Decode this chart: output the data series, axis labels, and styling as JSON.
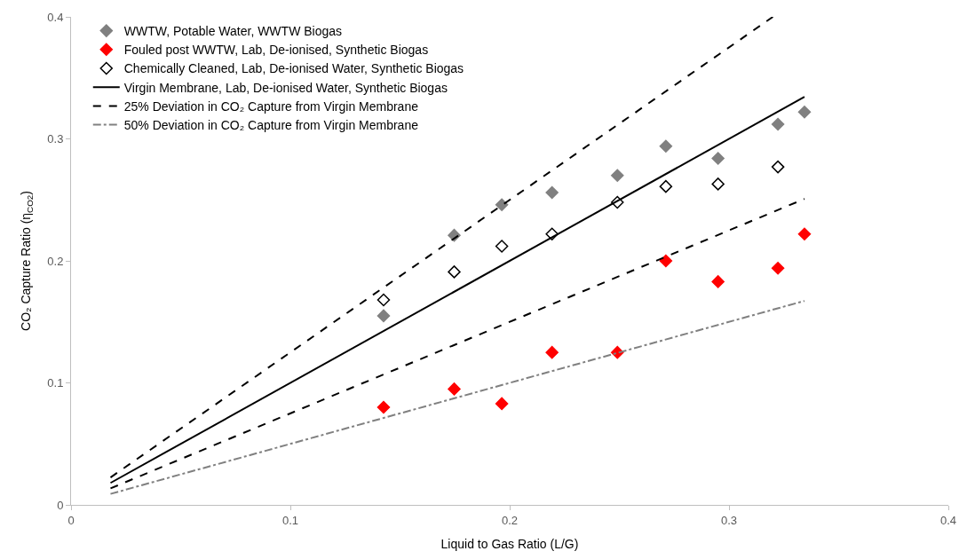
{
  "chart_data": {
    "type": "scatter",
    "xlabel": "Liquid to Gas Ratio (L/G)",
    "ylabel": "CO₂ Capture Ratio (η$_{CO2}$)",
    "x": [
      0.1425,
      0.1747,
      0.1964,
      0.2193,
      0.2491,
      0.2712,
      0.295,
      0.3223,
      0.3344
    ],
    "series": [
      {
        "name": "WWTW, Potable Water, WWTW Biogas",
        "marker": "diamond",
        "color": "#808080",
        "values": [
          0.155,
          0.221,
          0.246,
          0.256,
          0.27,
          0.294,
          0.284,
          0.312,
          0.322
        ]
      },
      {
        "name": "Fouled post WWTW, Lab, De-ionised, Synthetic Biogas",
        "marker": "diamond",
        "color": "#ff0000",
        "values": [
          0.08,
          0.095,
          0.083,
          0.125,
          0.125,
          0.2,
          0.183,
          0.194,
          0.222
        ]
      },
      {
        "name": "Chemically Cleaned, Lab, De-ionised Water, Synthetic Biogas",
        "marker": "diamond-open",
        "color": "#000000",
        "values": [
          0.168,
          0.191,
          0.212,
          0.222,
          0.248,
          0.261,
          0.263,
          0.277,
          null
        ]
      },
      {
        "name": "Virgin Membrane, Lab, De-ionised Water, Synthetic Biogas",
        "type": "line",
        "marker": "none",
        "line_style": "solid",
        "color": "#000000",
        "x": [
          0.018,
          0.3344
        ],
        "values": [
          0.018,
          0.3344
        ]
      },
      {
        "name": "25% Deviation in CO₂ Capture from Virgin Membrane",
        "type": "line",
        "marker": "none",
        "line_style": "dashed",
        "color": "#000000",
        "x": [
          0.018,
          0.32
        ],
        "values": [
          0.0225,
          0.4
        ]
      },
      {
        "type": "line",
        "marker": "none",
        "line_style": "dashed",
        "color": "#000000",
        "x": [
          0.018,
          0.3344
        ],
        "values": [
          0.0135,
          0.2508
        ]
      },
      {
        "name": "50% Deviation in CO₂ Capture from Virgin Membrane",
        "type": "line",
        "marker": "none",
        "line_style": "dashdot",
        "color": "#808080",
        "x": [
          0.018,
          0.3344
        ],
        "values": [
          0.009,
          0.1672
        ]
      }
    ],
    "xlim": [
      0,
      0.4
    ],
    "xticks": [
      0,
      0.1,
      0.2,
      0.3,
      0.4
    ],
    "ylim": [
      0,
      0.4
    ],
    "yticks": [
      0,
      0.1,
      0.2,
      0.3,
      0.4
    ],
    "legend": "top left"
  }
}
